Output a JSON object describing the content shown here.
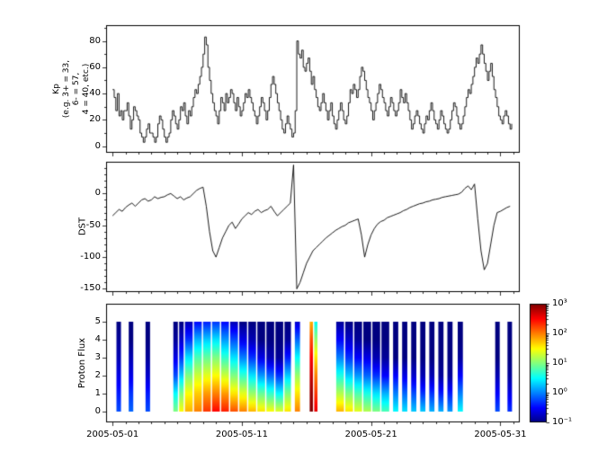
{
  "figure": {
    "background": "#ffffff",
    "axis_color": "#000000",
    "line_color": "#000000"
  },
  "axes": {
    "x": {
      "range_days": [
        -0.5,
        31.5
      ],
      "major_tick_days": [
        0,
        10,
        20,
        30
      ],
      "labels": [
        "2005-05-01",
        "2005-05-11",
        "2005-05-21",
        "2005-05-31"
      ]
    },
    "kp": {
      "ylabel_lines": [
        "Kp",
        "(e.g. 3+ = 33,",
        "6- = 57,",
        "4 = 40, etc.)"
      ],
      "ylim": [
        -5,
        92
      ],
      "ticks": [
        0,
        20,
        40,
        60,
        80
      ],
      "minor_ticks": [
        10,
        30,
        50,
        70,
        90
      ]
    },
    "dst": {
      "ylabel": "DST",
      "ylim": [
        -155,
        50
      ],
      "ticks": [
        0,
        -50,
        -100,
        -150
      ]
    },
    "proton": {
      "ylabel": "Proton Flux",
      "ylim": [
        -0.6,
        6.0
      ],
      "ticks": [
        0,
        1,
        2,
        3,
        4,
        5
      ]
    },
    "colorbar": {
      "log_range": [
        -1,
        3
      ],
      "tick_logs": [
        3,
        2,
        1,
        0,
        -1
      ],
      "tick_labels": [
        "10³",
        "10²",
        "10¹",
        "10⁰",
        "10⁻¹"
      ]
    }
  },
  "chart_data": [
    {
      "type": "line",
      "name": "kp_index",
      "title": "",
      "xlabel": "",
      "ylabel": "Kp (e.g. 3+ = 33, 6- = 57, 4 = 40, etc.)",
      "ylim": [
        -5,
        92
      ],
      "x_unit": "days since 2005-05-01",
      "x_start": 0,
      "x_step": 0.125,
      "draw_style": "steps-post",
      "values": [
        43,
        37,
        27,
        40,
        23,
        27,
        20,
        27,
        27,
        33,
        23,
        13,
        20,
        30,
        27,
        23,
        20,
        10,
        7,
        3,
        7,
        13,
        17,
        10,
        10,
        7,
        3,
        7,
        17,
        23,
        20,
        13,
        7,
        3,
        7,
        10,
        20,
        27,
        23,
        17,
        13,
        20,
        30,
        27,
        33,
        23,
        17,
        27,
        23,
        30,
        37,
        43,
        40,
        47,
        53,
        60,
        70,
        83,
        77,
        60,
        50,
        40,
        33,
        27,
        23,
        17,
        27,
        37,
        33,
        27,
        40,
        33,
        37,
        43,
        40,
        33,
        27,
        37,
        30,
        23,
        27,
        33,
        40,
        37,
        43,
        37,
        33,
        27,
        23,
        17,
        23,
        30,
        37,
        33,
        27,
        20,
        27,
        37,
        47,
        53,
        47,
        40,
        33,
        27,
        20,
        13,
        10,
        17,
        23,
        17,
        13,
        7,
        10,
        27,
        80,
        70,
        67,
        73,
        60,
        57,
        63,
        67,
        57,
        47,
        53,
        43,
        37,
        30,
        27,
        33,
        40,
        33,
        27,
        20,
        27,
        33,
        23,
        17,
        13,
        20,
        27,
        33,
        27,
        20,
        17,
        23,
        33,
        43,
        40,
        47,
        43,
        37,
        43,
        53,
        60,
        57,
        50,
        43,
        37,
        33,
        27,
        20,
        27,
        33,
        40,
        47,
        43,
        37,
        33,
        27,
        23,
        30,
        37,
        33,
        27,
        23,
        27,
        33,
        43,
        37,
        33,
        40,
        33,
        27,
        20,
        13,
        17,
        23,
        27,
        23,
        17,
        13,
        10,
        17,
        23,
        20,
        27,
        33,
        27,
        20,
        17,
        13,
        20,
        27,
        23,
        17,
        13,
        10,
        13,
        20,
        27,
        33,
        30,
        23,
        17,
        13,
        17,
        23,
        30,
        37,
        43,
        40,
        47,
        53,
        60,
        67,
        63,
        70,
        77,
        70,
        63,
        57,
        50,
        57,
        63,
        53,
        43,
        37,
        30,
        23,
        20,
        17,
        23,
        27,
        23,
        17,
        13,
        17
      ]
    },
    {
      "type": "line",
      "name": "dst_index",
      "title": "",
      "xlabel": "",
      "ylabel": "DST",
      "ylim": [
        -155,
        50
      ],
      "x_unit": "days since 2005-05-01",
      "x_start": 0,
      "x_step": 0.25,
      "draw_style": "line",
      "values": [
        -35,
        -30,
        -25,
        -28,
        -22,
        -18,
        -15,
        -20,
        -15,
        -10,
        -8,
        -12,
        -10,
        -5,
        -8,
        -6,
        -5,
        -2,
        0,
        -4,
        -8,
        -5,
        -10,
        -7,
        -5,
        0,
        5,
        8,
        10,
        -20,
        -60,
        -90,
        -100,
        -85,
        -70,
        -60,
        -50,
        -45,
        -55,
        -48,
        -40,
        -35,
        -30,
        -33,
        -28,
        -25,
        -30,
        -27,
        -25,
        -20,
        -28,
        -35,
        -30,
        -25,
        -20,
        -15,
        45,
        -150,
        -140,
        -125,
        -110,
        -100,
        -90,
        -85,
        -80,
        -75,
        -70,
        -66,
        -62,
        -58,
        -55,
        -52,
        -50,
        -46,
        -44,
        -42,
        -40,
        -65,
        -100,
        -80,
        -65,
        -55,
        -48,
        -44,
        -42,
        -38,
        -36,
        -34,
        -32,
        -30,
        -27,
        -25,
        -22,
        -20,
        -18,
        -16,
        -15,
        -13,
        -12,
        -10,
        -9,
        -8,
        -6,
        -5,
        -4,
        -3,
        -2,
        -1,
        2,
        8,
        12,
        6,
        15,
        -40,
        -90,
        -120,
        -110,
        -80,
        -50,
        -30,
        -28,
        -25,
        -22,
        -20
      ]
    },
    {
      "type": "heatmap",
      "name": "proton_flux_spectrogram",
      "title": "",
      "xlabel": "",
      "ylabel": "Proton Flux",
      "ylim": [
        0,
        5
      ],
      "colormap": "jet",
      "value_scale": "log10(flux)",
      "clim_log": [
        -1,
        3
      ],
      "profile_y": [
        0,
        1,
        2,
        3,
        4,
        5
      ],
      "columns": [
        {
          "x0": 0.3,
          "x1": 0.65,
          "v": [
            -0.2,
            -0.4,
            -0.6,
            -0.8,
            -0.9,
            -1.0
          ]
        },
        {
          "x0": 1.25,
          "x1": 1.6,
          "v": [
            -0.1,
            -0.3,
            -0.6,
            -0.8,
            -1.0,
            -1.0
          ]
        },
        {
          "x0": 2.55,
          "x1": 2.9,
          "v": [
            -0.2,
            -0.4,
            -0.7,
            -0.9,
            -1.0,
            -1.0
          ]
        },
        {
          "x0": 4.7,
          "x1": 5.05,
          "v": [
            1.0,
            0.5,
            -0.2,
            -0.6,
            -0.9,
            -1.0
          ]
        },
        {
          "x0": 5.15,
          "x1": 5.5,
          "v": [
            1.5,
            1.0,
            0.3,
            -0.3,
            -0.7,
            -1.0
          ]
        },
        {
          "x0": 5.6,
          "x1": 6.2,
          "v": [
            1.8,
            1.5,
            1.0,
            0.4,
            -0.3,
            -0.8
          ]
        },
        {
          "x0": 6.3,
          "x1": 6.9,
          "v": [
            2.0,
            1.7,
            1.3,
            0.8,
            0.2,
            -0.5
          ]
        },
        {
          "x0": 7.0,
          "x1": 7.6,
          "v": [
            2.3,
            1.9,
            1.4,
            0.9,
            0.3,
            -0.4
          ]
        },
        {
          "x0": 7.7,
          "x1": 8.3,
          "v": [
            2.5,
            2.0,
            1.5,
            1.0,
            0.4,
            -0.3
          ]
        },
        {
          "x0": 8.4,
          "x1": 9.0,
          "v": [
            2.4,
            1.9,
            1.3,
            0.7,
            0.1,
            -0.5
          ]
        },
        {
          "x0": 9.1,
          "x1": 9.7,
          "v": [
            2.2,
            1.6,
            1.0,
            0.4,
            -0.2,
            -0.8
          ]
        },
        {
          "x0": 9.8,
          "x1": 10.4,
          "v": [
            2.0,
            1.4,
            0.7,
            0.0,
            -0.6,
            -1.0
          ]
        },
        {
          "x0": 10.5,
          "x1": 11.1,
          "v": [
            1.8,
            1.1,
            0.4,
            -0.3,
            -0.8,
            -1.0
          ]
        },
        {
          "x0": 11.2,
          "x1": 11.8,
          "v": [
            1.6,
            0.9,
            0.1,
            -0.6,
            -1.0,
            -1.0
          ]
        },
        {
          "x0": 11.9,
          "x1": 12.5,
          "v": [
            1.5,
            0.7,
            -0.1,
            -0.8,
            -1.0,
            -1.0
          ]
        },
        {
          "x0": 12.6,
          "x1": 13.2,
          "v": [
            1.4,
            0.5,
            -0.3,
            -0.9,
            -1.0,
            -1.0
          ]
        },
        {
          "x0": 13.3,
          "x1": 13.8,
          "v": [
            1.6,
            1.0,
            0.3,
            -0.4,
            -0.9,
            -1.0
          ]
        },
        {
          "x0": 14.1,
          "x1": 14.5,
          "v": [
            2.0,
            1.6,
            1.1,
            0.5,
            -0.1,
            -0.7
          ]
        },
        {
          "x0": 15.25,
          "x1": 15.5,
          "v": [
            3.0,
            2.9,
            2.7,
            2.5,
            2.2,
            1.8
          ]
        },
        {
          "x0": 15.6,
          "x1": 15.85,
          "v": [
            2.6,
            2.3,
            2.0,
            1.6,
            1.1,
            0.5
          ]
        },
        {
          "x0": 17.3,
          "x1": 17.9,
          "v": [
            1.8,
            1.2,
            0.6,
            0.0,
            -0.5,
            -0.9
          ]
        },
        {
          "x0": 18.0,
          "x1": 18.6,
          "v": [
            1.6,
            1.0,
            0.3,
            -0.3,
            -0.7,
            -1.0
          ]
        },
        {
          "x0": 18.7,
          "x1": 19.3,
          "v": [
            1.4,
            0.8,
            0.1,
            -0.5,
            -0.9,
            -1.0
          ]
        },
        {
          "x0": 19.4,
          "x1": 20.0,
          "v": [
            1.2,
            0.6,
            -0.1,
            -0.6,
            -1.0,
            -1.0
          ]
        },
        {
          "x0": 20.1,
          "x1": 20.7,
          "v": [
            1.0,
            0.4,
            -0.3,
            -0.8,
            -1.0,
            -1.0
          ]
        },
        {
          "x0": 20.8,
          "x1": 21.4,
          "v": [
            0.8,
            0.2,
            -0.5,
            -0.9,
            -1.0,
            -1.0
          ]
        },
        {
          "x0": 21.7,
          "x1": 22.1,
          "v": [
            0.5,
            0.0,
            -0.5,
            -1.0,
            -1.0,
            -1.0
          ]
        },
        {
          "x0": 22.4,
          "x1": 22.8,
          "v": [
            0.4,
            -0.1,
            -0.6,
            -1.0,
            -1.0,
            -1.0
          ]
        },
        {
          "x0": 23.1,
          "x1": 23.5,
          "v": [
            0.3,
            -0.2,
            -0.7,
            -1.0,
            -1.0,
            -1.0
          ]
        },
        {
          "x0": 23.8,
          "x1": 24.2,
          "v": [
            0.3,
            -0.3,
            -0.8,
            -1.0,
            -1.0,
            -1.0
          ]
        },
        {
          "x0": 24.5,
          "x1": 24.9,
          "v": [
            0.2,
            -0.3,
            -0.8,
            -1.0,
            -1.0,
            -1.0
          ]
        },
        {
          "x0": 25.2,
          "x1": 25.6,
          "v": [
            0.2,
            -0.4,
            -0.9,
            -1.0,
            -1.0,
            -1.0
          ]
        },
        {
          "x0": 25.9,
          "x1": 26.3,
          "v": [
            0.1,
            -0.4,
            -0.9,
            -1.0,
            -1.0,
            -1.0
          ]
        },
        {
          "x0": 26.7,
          "x1": 27.1,
          "v": [
            0.5,
            0.0,
            -0.5,
            -0.9,
            -1.0,
            -1.0
          ]
        },
        {
          "x0": 29.6,
          "x1": 29.95,
          "v": [
            -0.2,
            -0.5,
            -0.8,
            -1.0,
            -1.0,
            -1.0
          ]
        },
        {
          "x0": 30.55,
          "x1": 30.9,
          "v": [
            -0.3,
            -0.6,
            -0.9,
            -1.0,
            -1.0,
            -1.0
          ]
        }
      ]
    }
  ]
}
